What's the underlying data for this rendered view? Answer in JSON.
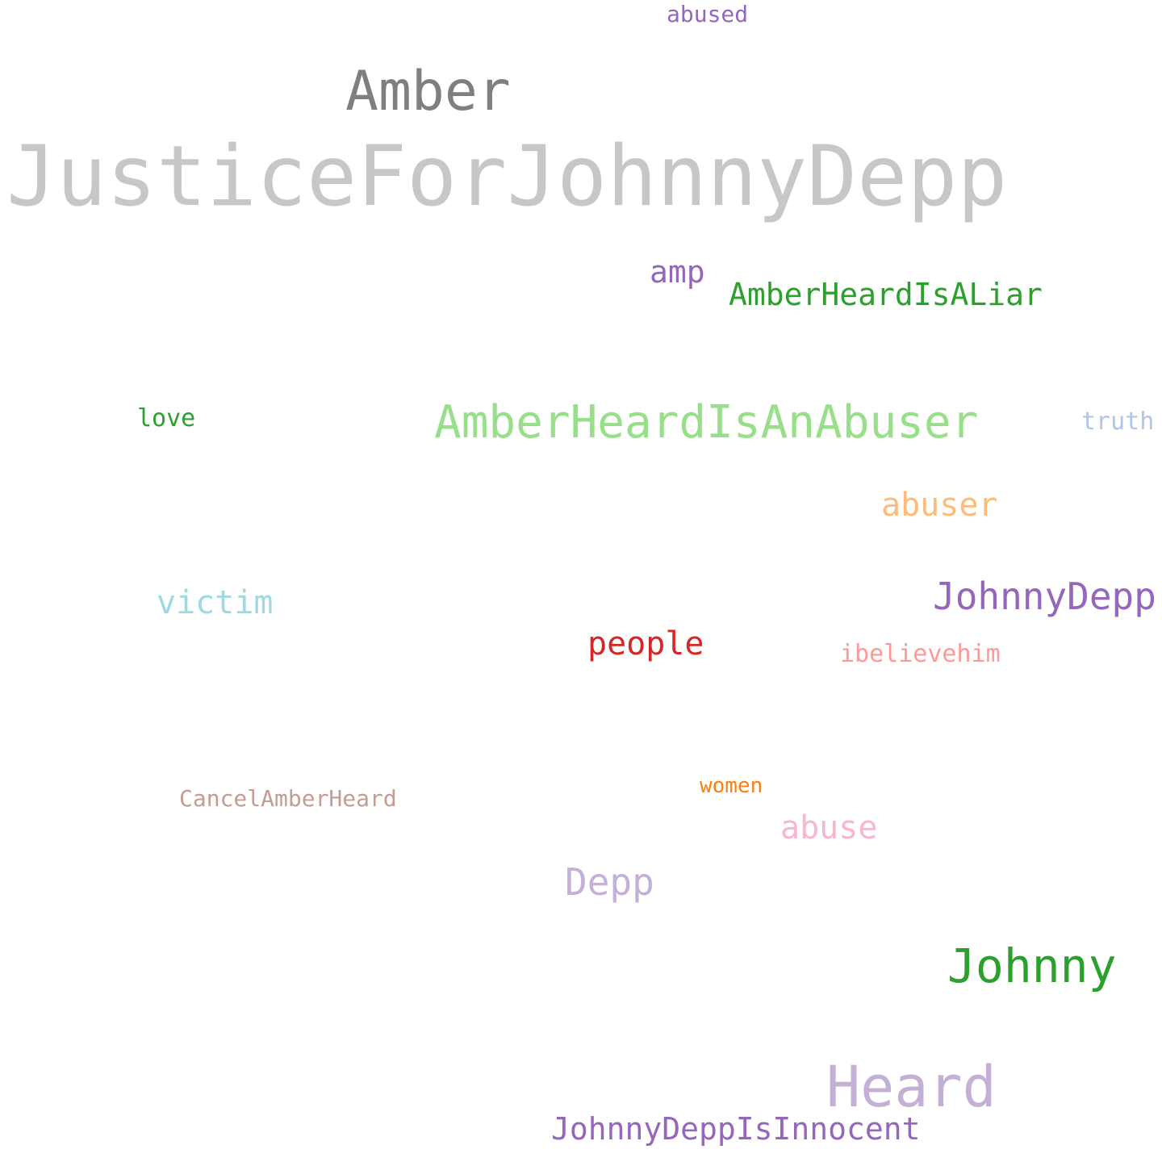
{
  "words": [
    {
      "id": "w-justice",
      "text": "JusticeForJohnnyDepp",
      "color": "#c7c7c7"
    },
    {
      "id": "w-amber",
      "text": "Amber",
      "color": "#7f7f7f"
    },
    {
      "id": "w-abused",
      "text": "abused",
      "color": "#9467bd"
    },
    {
      "id": "w-amp",
      "text": "amp",
      "color": "#9467bd"
    },
    {
      "id": "w-liar",
      "text": "AmberHeardIsALiar",
      "color": "#2ca02c"
    },
    {
      "id": "w-love",
      "text": "love",
      "color": "#2ca02c"
    },
    {
      "id": "w-abuser-tag",
      "text": "AmberHeardIsAnAbuser",
      "color": "#98df8a"
    },
    {
      "id": "w-truth",
      "text": "truth",
      "color": "#aec7e8"
    },
    {
      "id": "w-abuser",
      "text": "abuser",
      "color": "#ffbb78"
    },
    {
      "id": "w-victim",
      "text": "victim",
      "color": "#9edae5"
    },
    {
      "id": "w-johnnydepp",
      "text": "JohnnyDepp",
      "color": "#9467bd"
    },
    {
      "id": "w-people",
      "text": "people",
      "color": "#d62728"
    },
    {
      "id": "w-ibelieve",
      "text": "ibelievehim",
      "color": "#ff9896"
    },
    {
      "id": "w-cancel",
      "text": "CancelAmberHeard",
      "color": "#c49c94"
    },
    {
      "id": "w-women",
      "text": "women",
      "color": "#ff7f0e"
    },
    {
      "id": "w-abuse",
      "text": "abuse",
      "color": "#f7b6d2"
    },
    {
      "id": "w-depp",
      "text": "Depp",
      "color": "#c5b0d5"
    },
    {
      "id": "w-johnny",
      "text": "Johnny",
      "color": "#2ca02c"
    },
    {
      "id": "w-heard",
      "text": "Heard",
      "color": "#c5b0d5"
    },
    {
      "id": "w-innocent",
      "text": "JohnnyDeppIsInnocent",
      "color": "#9467bd"
    }
  ]
}
